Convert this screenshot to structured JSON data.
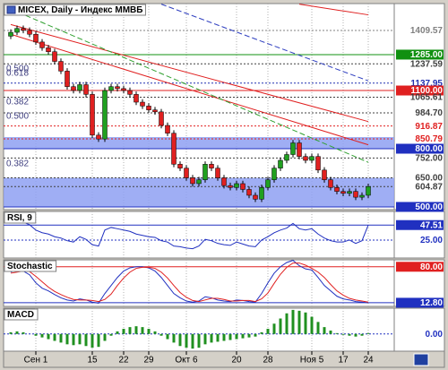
{
  "chart_data": [
    {
      "type": "candlestick",
      "title": "MICEX, Daily - Индекс ММВБ",
      "categories": [
        null,
        null,
        null,
        null,
        "Сен 1",
        null,
        null,
        null,
        null,
        null,
        null,
        null,
        null,
        "15",
        null,
        null,
        null,
        null,
        "22",
        null,
        null,
        null,
        "29",
        null,
        null,
        null,
        null,
        null,
        "Окт 6",
        null,
        null,
        null,
        null,
        null,
        null,
        null,
        "20",
        null,
        null,
        null,
        null,
        "28",
        null,
        null,
        null,
        null,
        null,
        null,
        "Ноя 5",
        null,
        null,
        null,
        null,
        "17",
        null,
        null,
        null,
        "24"
      ],
      "open": [
        1380,
        1400,
        1420,
        1410,
        1390,
        1350,
        1320,
        1300,
        1250,
        1200,
        1120,
        1100,
        1130,
        1080,
        870,
        850,
        1100,
        1120,
        1110,
        1100,
        1080,
        1040,
        1020,
        1000,
        990,
        920,
        880,
        720,
        700,
        650,
        620,
        640,
        720,
        700,
        650,
        610,
        600,
        620,
        590,
        560,
        540,
        600,
        640,
        700,
        740,
        770,
        830,
        760,
        740,
        760,
        690,
        640,
        600,
        580,
        570,
        580,
        550,
        560
      ],
      "high": [
        1415,
        1435,
        1435,
        1425,
        1405,
        1365,
        1335,
        1315,
        1265,
        1215,
        1135,
        1145,
        1145,
        1095,
        885,
        1115,
        1135,
        1135,
        1125,
        1115,
        1095,
        1055,
        1035,
        1015,
        1005,
        935,
        895,
        735,
        715,
        665,
        655,
        735,
        735,
        715,
        665,
        625,
        635,
        635,
        605,
        575,
        615,
        655,
        715,
        755,
        785,
        845,
        845,
        775,
        775,
        775,
        705,
        655,
        615,
        595,
        595,
        595,
        575,
        620
      ],
      "low": [
        1365,
        1385,
        1395,
        1375,
        1335,
        1305,
        1285,
        1235,
        1185,
        1105,
        1085,
        1085,
        1065,
        855,
        835,
        835,
        1085,
        1095,
        1085,
        1065,
        1025,
        1005,
        985,
        975,
        905,
        865,
        705,
        685,
        635,
        605,
        605,
        625,
        685,
        635,
        595,
        585,
        585,
        575,
        545,
        525,
        525,
        585,
        625,
        685,
        725,
        755,
        745,
        725,
        725,
        675,
        625,
        585,
        565,
        555,
        555,
        535,
        535,
        545
      ],
      "close": [
        1400,
        1420,
        1410,
        1390,
        1350,
        1320,
        1300,
        1250,
        1200,
        1120,
        1100,
        1130,
        1080,
        870,
        850,
        1100,
        1120,
        1110,
        1100,
        1080,
        1040,
        1020,
        1000,
        990,
        920,
        880,
        720,
        700,
        650,
        620,
        640,
        720,
        700,
        650,
        610,
        600,
        620,
        590,
        560,
        540,
        600,
        640,
        700,
        740,
        770,
        830,
        760,
        740,
        760,
        690,
        640,
        600,
        580,
        570,
        580,
        550,
        560,
        605
      ],
      "up_color": "#20a020",
      "down_color": "#e02020",
      "ylim": [
        486,
        1548
      ],
      "grid": true,
      "bands": [
        {
          "from": 800,
          "to": 860,
          "color": "#8ea0f2"
        },
        {
          "from": 500,
          "to": 650,
          "color": "#8ea0f2"
        }
      ],
      "trendlines": [
        {
          "from": [
            0,
            1390
          ],
          "to": [
            57,
            820
          ],
          "color": "#e02020",
          "dash": false
        },
        {
          "from": [
            0,
            1440
          ],
          "to": [
            57,
            940
          ],
          "color": "#e02020",
          "dash": false
        },
        {
          "from": [
            46,
            1545
          ],
          "to": [
            57,
            1490
          ],
          "color": "#e02020",
          "dash": false
        },
        {
          "from": [
            0,
            1520
          ],
          "to": [
            57,
            730
          ],
          "color": "#30a030",
          "dash": true
        },
        {
          "from": [
            24,
            1545
          ],
          "to": [
            57,
            1150
          ],
          "color": "#3040c0",
          "dash": true
        }
      ],
      "fib_labels": [
        {
          "value": 1211,
          "label": "0.500"
        },
        {
          "value": 1188,
          "label": "0.618"
        },
        {
          "value": 1040,
          "label": "0.382"
        },
        {
          "value": 966,
          "label": "0.500"
        },
        {
          "value": 722,
          "label": "0.382"
        }
      ],
      "levels": [
        {
          "value": 1409.57,
          "label": "1409.57",
          "color": "#808080",
          "filled": false
        },
        {
          "value": 1285,
          "label": "1285.00",
          "color": "#109010",
          "filled": true
        },
        {
          "value": 1237.59,
          "label": "1237.59",
          "color": "#404040",
          "filled": false
        },
        {
          "value": 1137.95,
          "label": "1137.95",
          "color": "#2030b0",
          "filled": false
        },
        {
          "value": 1100,
          "label": "1100.00",
          "color": "#e02020",
          "filled": true
        },
        {
          "value": 1065.61,
          "label": "1065.61",
          "color": "#404040",
          "filled": false
        },
        {
          "value": 984.7,
          "label": "984.70",
          "color": "#404040",
          "filled": false
        },
        {
          "value": 916.87,
          "label": "916.87",
          "color": "#e02020",
          "filled": false
        },
        {
          "value": 850.79,
          "label": "850.79",
          "color": "#e02020",
          "filled": false
        },
        {
          "value": 800,
          "label": "800.00",
          "color": "#2030c0",
          "filled": true
        },
        {
          "value": 752,
          "label": "752.00",
          "color": "#404040",
          "filled": false
        },
        {
          "value": 650,
          "label": "650.00",
          "color": "#404040",
          "filled": false
        },
        {
          "value": 604.87,
          "label": "604.87",
          "color": "#404040",
          "filled": false
        },
        {
          "value": 500,
          "label": "500.00",
          "color": "#2030c0",
          "filled": true
        }
      ]
    },
    {
      "type": "line",
      "title": "RSI, 9",
      "ylim": [
        -2,
        68
      ],
      "series": [
        {
          "color": "#2030c0",
          "values": [
            55,
            58,
            52,
            48,
            40,
            36,
            34,
            30,
            28,
            24,
            22,
            30,
            26,
            18,
            16,
            40,
            44,
            42,
            40,
            38,
            34,
            32,
            30,
            29,
            24,
            22,
            16,
            15,
            13,
            12,
            16,
            26,
            24,
            20,
            18,
            17,
            22,
            19,
            16,
            15,
            25,
            30,
            36,
            40,
            43,
            50,
            42,
            40,
            42,
            34,
            28,
            24,
            22,
            22,
            25,
            20,
            24,
            47.51
          ]
        }
      ],
      "levels": [
        {
          "value": 47.51,
          "label": "47.51",
          "color": "#2030c0",
          "filled": true
        },
        {
          "value": 25,
          "label": "25.00",
          "color": "#2030c0",
          "filled": false
        }
      ]
    },
    {
      "type": "line",
      "title": "Stochastic",
      "ylim": [
        6,
        93
      ],
      "series": [
        {
          "color": "#2030c0",
          "values": [
            70,
            75,
            72,
            65,
            50,
            40,
            35,
            28,
            22,
            18,
            16,
            20,
            18,
            14,
            12,
            30,
            45,
            60,
            72,
            78,
            80,
            80,
            78,
            72,
            60,
            45,
            30,
            22,
            16,
            14,
            16,
            24,
            22,
            18,
            16,
            15,
            18,
            17,
            15,
            14,
            30,
            50,
            68,
            80,
            88,
            92,
            82,
            76,
            74,
            60,
            45,
            35,
            25,
            20,
            18,
            15,
            14,
            12.8
          ]
        },
        {
          "color": "#e02020",
          "values": [
            68,
            70,
            72,
            71,
            62,
            52,
            42,
            34,
            28,
            23,
            19,
            18,
            18,
            17,
            15,
            19,
            29,
            45,
            59,
            70,
            77,
            79,
            79,
            77,
            70,
            59,
            45,
            32,
            23,
            17,
            15,
            18,
            21,
            21,
            19,
            16,
            16,
            17,
            17,
            15,
            20,
            31,
            49,
            66,
            79,
            87,
            87,
            83,
            77,
            70,
            60,
            47,
            35,
            27,
            21,
            18,
            16,
            14
          ]
        }
      ],
      "levels": [
        {
          "value": 80,
          "label": "80.00",
          "color": "#e02020",
          "filled": true
        },
        {
          "value": 12.8,
          "label": "12.80",
          "color": "#2030c0",
          "filled": true
        }
      ]
    },
    {
      "type": "bar",
      "title": "MACD",
      "ylim": [
        -20,
        30
      ],
      "color": "#209020",
      "values": [
        2,
        3,
        2,
        0,
        -2,
        -4,
        -6,
        -8,
        -10,
        -12,
        -13,
        -12,
        -14,
        -16,
        -15,
        -8,
        -2,
        3,
        6,
        8,
        9,
        8,
        6,
        3,
        -2,
        -6,
        -10,
        -14,
        -16,
        -17,
        -16,
        -12,
        -10,
        -9,
        -8,
        -7,
        -6,
        -5,
        -4,
        -3,
        2,
        6,
        12,
        18,
        24,
        28,
        27,
        25,
        20,
        14,
        8,
        4,
        1,
        -1,
        -2,
        -3,
        -2,
        1
      ],
      "levels": [
        {
          "value": 0,
          "label": "0.00",
          "color": "#2030c0",
          "filled": false
        }
      ]
    }
  ]
}
